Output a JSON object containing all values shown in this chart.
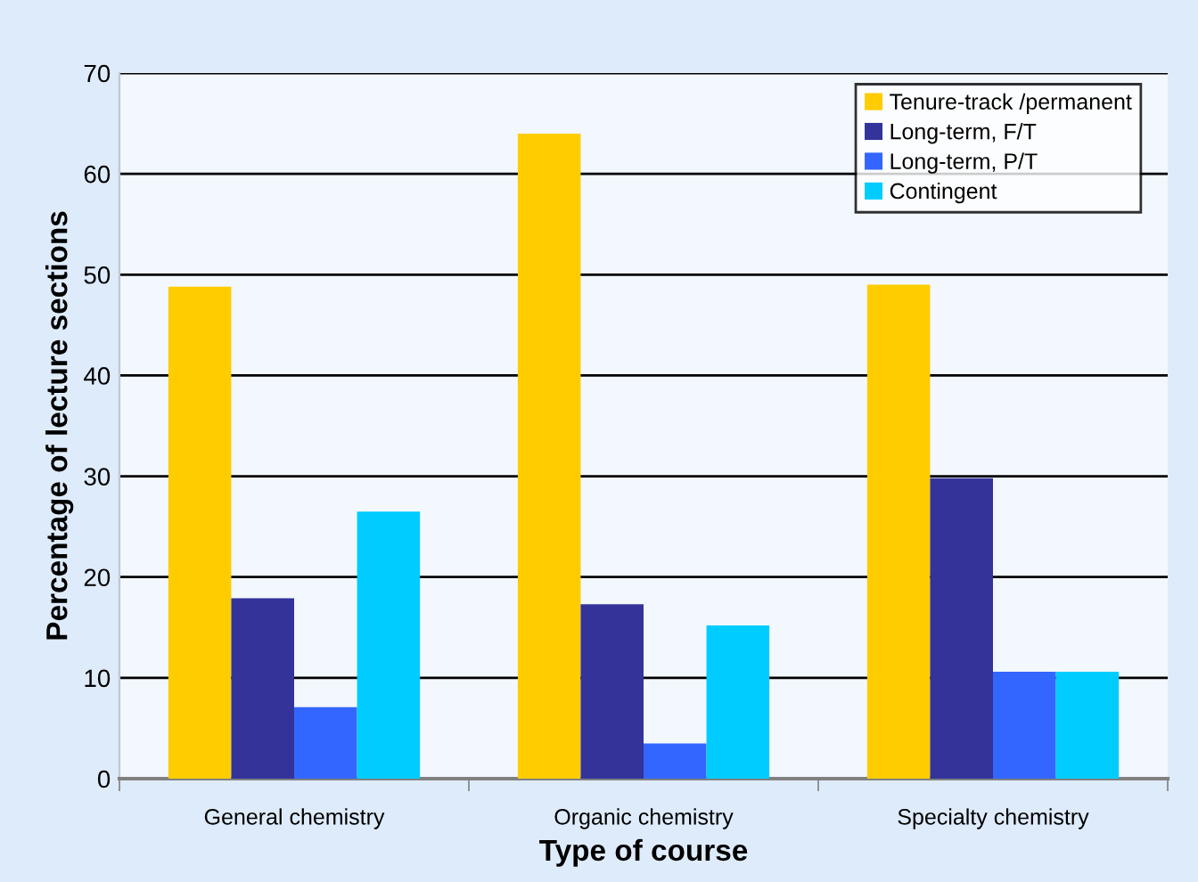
{
  "chart_data": {
    "type": "bar",
    "xlabel": "Type of course",
    "ylabel": "Percentage of lecture sections",
    "categories": [
      "General chemistry",
      "Organic chemistry",
      "Specialty chemistry"
    ],
    "series": [
      {
        "name": "Tenure-track /permanent",
        "color": "#ffcc00",
        "values": [
          48.8,
          64.0,
          49.0
        ]
      },
      {
        "name": "Long-term, F/T",
        "color": "#333399",
        "values": [
          17.9,
          17.3,
          29.8
        ]
      },
      {
        "name": "Long-term, P/T",
        "color": "#3366ff",
        "values": [
          7.1,
          3.5,
          10.6
        ]
      },
      {
        "name": "Contingent",
        "color": "#00ccff",
        "values": [
          26.5,
          15.2,
          10.6
        ]
      }
    ],
    "ylim": [
      0,
      70
    ],
    "yticks": [
      0,
      10,
      20,
      30,
      40,
      50,
      60,
      70
    ],
    "grid": "y",
    "legend": "top right"
  }
}
